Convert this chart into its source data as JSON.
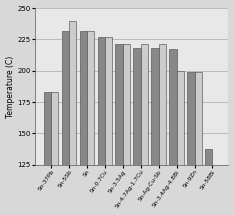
{
  "categories": [
    "Sn-37Pb",
    "Sn-5Sb",
    "Sn",
    "Sn-0.7Cu",
    "Sn-3.5Ag",
    "Sn-4.7Ag-1.7Cu",
    "Sn-Ag-Cu-Sb",
    "Sn-3.4Ag-4.8Bi",
    "Sn-9Zn",
    "Sn-58Bi"
  ],
  "bar1_values": [
    183,
    232,
    232,
    227,
    221,
    218,
    218,
    217,
    199,
    138
  ],
  "bar2_values": [
    183,
    240,
    232,
    227,
    221,
    221,
    221,
    200,
    199,
    125
  ],
  "bar1_color": "#888888",
  "bar2_color": "#cccccc",
  "ylabel": "Temperature (C)",
  "ylim": [
    125,
    250
  ],
  "yticks": [
    125,
    150,
    175,
    200,
    225,
    250
  ],
  "bar_width": 0.4,
  "background_color": "#e8e8e8",
  "figure_bg": "#d8d8d8"
}
